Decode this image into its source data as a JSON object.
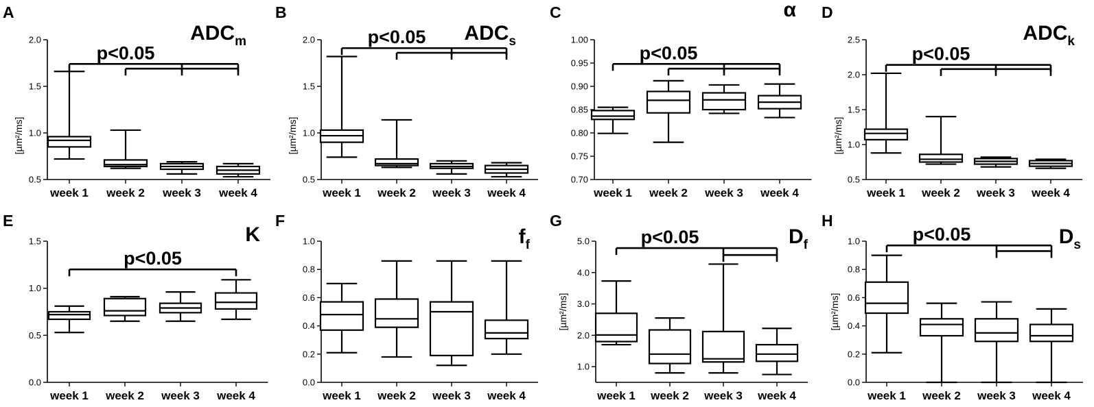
{
  "figure": {
    "panels": [
      {
        "label": "A",
        "title": "ADC",
        "subscript": "m",
        "ylabel": "[µm²/ms]"
      },
      {
        "label": "B",
        "title": "ADC",
        "subscript": "s",
        "ylabel": "[µm²/ms]"
      },
      {
        "label": "C",
        "title": "α",
        "subscript": "",
        "ylabel": ""
      },
      {
        "label": "D",
        "title": "ADC",
        "subscript": "k",
        "ylabel": "[µm²/ms]"
      },
      {
        "label": "E",
        "title": "K",
        "subscript": "",
        "ylabel": ""
      },
      {
        "label": "F",
        "title": "f",
        "subscript": "f",
        "ylabel": ""
      },
      {
        "label": "G",
        "title": "D",
        "subscript": "f",
        "ylabel": "[µm²/ms]"
      },
      {
        "label": "H",
        "title": "D",
        "subscript": "s",
        "ylabel": "[µm²/ms]"
      }
    ]
  },
  "chart_data": [
    {
      "type": "box",
      "label": "A",
      "title": "ADCm",
      "ylabel": "[µm²/ms]",
      "categories": [
        "week 1",
        "week 2",
        "week 3",
        "week 4"
      ],
      "ylim": [
        0.5,
        2.0
      ],
      "yticks": [
        "0.5",
        "1.0",
        "1.5",
        "2.0"
      ],
      "boxes": [
        {
          "min": 0.72,
          "q1": 0.85,
          "median": 0.92,
          "q3": 0.96,
          "max": 1.66
        },
        {
          "min": 0.62,
          "q1": 0.64,
          "median": 0.66,
          "q3": 0.71,
          "max": 1.03
        },
        {
          "min": 0.56,
          "q1": 0.61,
          "median": 0.64,
          "q3": 0.67,
          "max": 0.69
        },
        {
          "min": 0.53,
          "q1": 0.56,
          "median": 0.6,
          "q3": 0.64,
          "max": 0.67
        }
      ],
      "significance": [
        {
          "text": "p<0.05",
          "from": 0,
          "to": [
            2,
            3
          ],
          "y": 1.74
        },
        {
          "text": "",
          "from": 1,
          "to": [
            2,
            3
          ],
          "y": 1.69
        }
      ]
    },
    {
      "type": "box",
      "label": "B",
      "title": "ADCs",
      "ylabel": "[µm²/ms]",
      "categories": [
        "week 1",
        "week 2",
        "week 3",
        "week 4"
      ],
      "ylim": [
        0.5,
        2.0
      ],
      "yticks": [
        "0.5",
        "1.0",
        "1.5",
        "2.0"
      ],
      "boxes": [
        {
          "min": 0.74,
          "q1": 0.9,
          "median": 0.97,
          "q3": 1.03,
          "max": 1.82
        },
        {
          "min": 0.63,
          "q1": 0.65,
          "median": 0.67,
          "q3": 0.72,
          "max": 1.14
        },
        {
          "min": 0.56,
          "q1": 0.62,
          "median": 0.64,
          "q3": 0.67,
          "max": 0.7
        },
        {
          "min": 0.53,
          "q1": 0.57,
          "median": 0.61,
          "q3": 0.65,
          "max": 0.68
        }
      ],
      "significance": [
        {
          "text": "p<0.05",
          "from": 0,
          "to": [
            2,
            3
          ],
          "y": 1.91
        },
        {
          "text": "",
          "from": 1,
          "to": [
            2,
            3
          ],
          "y": 1.86
        }
      ]
    },
    {
      "type": "box",
      "label": "C",
      "title": "α",
      "ylabel": "",
      "categories": [
        "week 1",
        "week 2",
        "week 3",
        "week 4"
      ],
      "ylim": [
        0.7,
        1.0
      ],
      "yticks": [
        "0.70",
        "0.75",
        "0.80",
        "0.85",
        "0.90",
        "0.95",
        "1.00"
      ],
      "boxes": [
        {
          "min": 0.799,
          "q1": 0.829,
          "median": 0.836,
          "q3": 0.848,
          "max": 0.855
        },
        {
          "min": 0.78,
          "q1": 0.843,
          "median": 0.87,
          "q3": 0.889,
          "max": 0.912
        },
        {
          "min": 0.842,
          "q1": 0.85,
          "median": 0.871,
          "q3": 0.886,
          "max": 0.903
        },
        {
          "min": 0.833,
          "q1": 0.852,
          "median": 0.866,
          "q3": 0.88,
          "max": 0.905
        }
      ],
      "significance": [
        {
          "text": "p<0.05",
          "from": 0,
          "to": [
            2,
            3
          ],
          "y": 0.948
        },
        {
          "text": "",
          "from": 1,
          "to": [
            2,
            3
          ],
          "y": 0.938
        }
      ]
    },
    {
      "type": "box",
      "label": "D",
      "title": "ADCk",
      "ylabel": "[µm²/ms]",
      "categories": [
        "week 1",
        "week 2",
        "week 3",
        "week 4"
      ],
      "ylim": [
        0.5,
        2.5
      ],
      "yticks": [
        "0.5",
        "1.0",
        "1.5",
        "2.0",
        "2.5"
      ],
      "boxes": [
        {
          "min": 0.88,
          "q1": 1.07,
          "median": 1.16,
          "q3": 1.22,
          "max": 2.02
        },
        {
          "min": 0.72,
          "q1": 0.75,
          "median": 0.79,
          "q3": 0.86,
          "max": 1.4
        },
        {
          "min": 0.68,
          "q1": 0.72,
          "median": 0.76,
          "q3": 0.8,
          "max": 0.82
        },
        {
          "min": 0.66,
          "q1": 0.69,
          "median": 0.73,
          "q3": 0.77,
          "max": 0.79
        }
      ],
      "significance": [
        {
          "text": "p<0.05",
          "from": 0,
          "to": [
            2,
            3
          ],
          "y": 2.14
        },
        {
          "text": "",
          "from": 1,
          "to": [
            2,
            3
          ],
          "y": 2.08
        }
      ]
    },
    {
      "type": "box",
      "label": "E",
      "title": "K",
      "ylabel": "",
      "categories": [
        "week 1",
        "week 2",
        "week 3",
        "week 4"
      ],
      "ylim": [
        0.0,
        1.5
      ],
      "yticks": [
        "0.0",
        "0.5",
        "1.0",
        "1.5"
      ],
      "boxes": [
        {
          "min": 0.53,
          "q1": 0.67,
          "median": 0.72,
          "q3": 0.75,
          "max": 0.81
        },
        {
          "min": 0.65,
          "q1": 0.71,
          "median": 0.76,
          "q3": 0.89,
          "max": 0.91
        },
        {
          "min": 0.65,
          "q1": 0.74,
          "median": 0.79,
          "q3": 0.84,
          "max": 0.96
        },
        {
          "min": 0.67,
          "q1": 0.78,
          "median": 0.85,
          "q3": 0.95,
          "max": 1.09
        }
      ],
      "significance": [
        {
          "text": "p<0.05",
          "from": 0,
          "to": [
            3
          ],
          "y": 1.2
        }
      ]
    },
    {
      "type": "box",
      "label": "F",
      "title": "ff",
      "ylabel": "",
      "categories": [
        "week 1",
        "week 2",
        "week 3",
        "week 4"
      ],
      "ylim": [
        0.0,
        1.0
      ],
      "yticks": [
        "0.0",
        "0.2",
        "0.4",
        "0.6",
        "0.8",
        "1.0"
      ],
      "boxes": [
        {
          "min": 0.21,
          "q1": 0.37,
          "median": 0.48,
          "q3": 0.57,
          "max": 0.7
        },
        {
          "min": 0.18,
          "q1": 0.39,
          "median": 0.45,
          "q3": 0.59,
          "max": 0.86
        },
        {
          "min": 0.12,
          "q1": 0.19,
          "median": 0.5,
          "q3": 0.57,
          "max": 0.86
        },
        {
          "min": 0.2,
          "q1": 0.31,
          "median": 0.35,
          "q3": 0.44,
          "max": 0.86
        }
      ],
      "significance": []
    },
    {
      "type": "box",
      "label": "G",
      "title": "Df",
      "ylabel": "[µm²/ms]",
      "categories": [
        "week 1",
        "week 2",
        "week 3",
        "week 4"
      ],
      "ylim": [
        0.5,
        5.0
      ],
      "yticks": [
        "1.0",
        "2.0",
        "3.0",
        "4.0",
        "5.0"
      ],
      "boxes": [
        {
          "min": 1.7,
          "q1": 1.8,
          "median": 2.01,
          "q3": 2.7,
          "max": 3.73
        },
        {
          "min": 0.8,
          "q1": 1.1,
          "median": 1.4,
          "q3": 2.17,
          "max": 2.55
        },
        {
          "min": 0.8,
          "q1": 1.15,
          "median": 1.25,
          "q3": 2.12,
          "max": 4.27
        },
        {
          "min": 0.75,
          "q1": 1.17,
          "median": 1.4,
          "q3": 1.7,
          "max": 2.22
        }
      ],
      "significance": [
        {
          "text": "p<0.05",
          "from": 0,
          "to": [
            2,
            3
          ],
          "y": 4.78
        },
        {
          "text": "",
          "from": 2,
          "to": [
            3
          ],
          "y": 4.56
        }
      ]
    },
    {
      "type": "box",
      "label": "H",
      "title": "Ds",
      "ylabel": "[µm²/ms]",
      "categories": [
        "week 1",
        "week 2",
        "week 3",
        "week 4"
      ],
      "ylim": [
        0.0,
        1.0
      ],
      "yticks": [
        "0.0",
        "0.2",
        "0.4",
        "0.6",
        "0.8",
        "1.0"
      ],
      "boxes": [
        {
          "min": 0.21,
          "q1": 0.49,
          "median": 0.56,
          "q3": 0.71,
          "max": 0.9
        },
        {
          "min": 0.0,
          "q1": 0.33,
          "median": 0.41,
          "q3": 0.45,
          "max": 0.56
        },
        {
          "min": 0.0,
          "q1": 0.29,
          "median": 0.35,
          "q3": 0.45,
          "max": 0.57
        },
        {
          "min": 0.0,
          "q1": 0.29,
          "median": 0.33,
          "q3": 0.41,
          "max": 0.52
        }
      ],
      "significance": [
        {
          "text": "p<0.05",
          "from": 0,
          "to": [
            2,
            3
          ],
          "y": 0.97
        },
        {
          "text": "",
          "from": 2,
          "to": [
            3
          ],
          "y": 0.93
        }
      ]
    }
  ]
}
